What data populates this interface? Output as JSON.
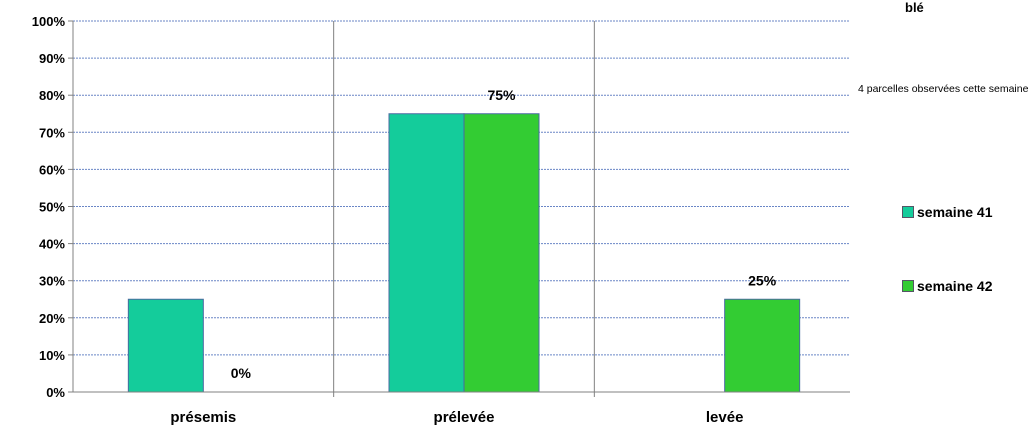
{
  "chart_data": {
    "type": "bar",
    "categories": [
      "présemis",
      "prélevée",
      "levée"
    ],
    "series": [
      {
        "name": "semaine 41",
        "color": "#14cc9b",
        "values": [
          25,
          75,
          0
        ]
      },
      {
        "name": "semaine 42",
        "color": "#33cc33",
        "values": [
          0,
          75,
          25
        ]
      }
    ],
    "data_labels": [
      {
        "category": "présemis",
        "text": "0%"
      },
      {
        "category": "prélevée",
        "text": "75%"
      },
      {
        "category": "levée",
        "text": "25%"
      }
    ],
    "yticks": [
      "0%",
      "10%",
      "20%",
      "30%",
      "40%",
      "50%",
      "60%",
      "70%",
      "80%",
      "90%",
      "100%"
    ],
    "ylim": [
      0,
      100
    ],
    "grid": true,
    "legend_position": "right",
    "title": "blé",
    "note": "4 parcelles observées cette semaine"
  }
}
